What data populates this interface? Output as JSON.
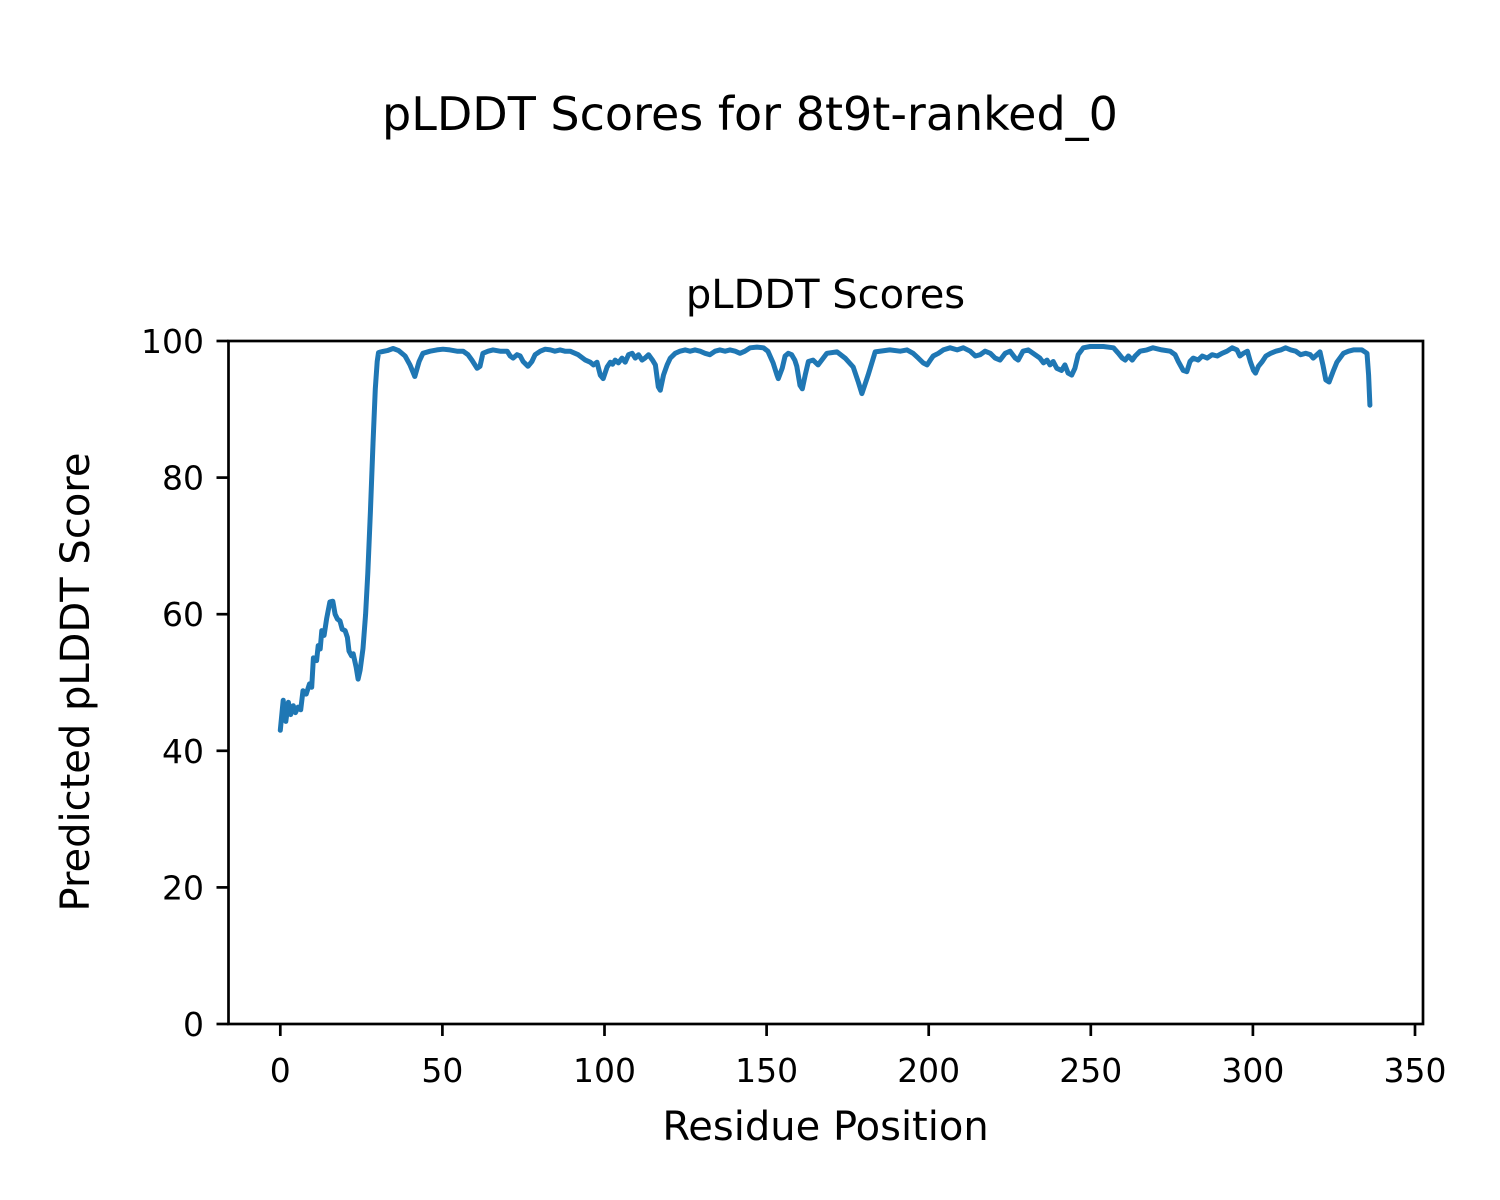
{
  "figure": {
    "suptitle": "pLDDT Scores for 8t9t-ranked_0",
    "background_color": "#ffffff",
    "text_color": "#000000"
  },
  "chart_data": {
    "type": "line",
    "title": "pLDDT Scores",
    "xlabel": "Residue Position",
    "ylabel": "Predicted pLDDT Score",
    "x_ticks": [
      0,
      50,
      100,
      150,
      200,
      250,
      300,
      350
    ],
    "y_ticks": [
      0,
      20,
      40,
      60,
      80,
      100
    ],
    "ylim": [
      0,
      100
    ],
    "xlim": [
      0,
      350
    ],
    "grid": false,
    "legend": "none",
    "line_color": "#1f77b4",
    "axis_color": "#000000",
    "series": [
      {
        "name": "pLDDT",
        "points": [
          [
            0,
            43.0
          ],
          [
            0.9,
            47.4
          ],
          [
            1.7,
            44.3
          ],
          [
            2.5,
            47.1
          ],
          [
            3.2,
            45.3
          ],
          [
            4,
            46.6
          ],
          [
            4.7,
            45.6
          ],
          [
            5.5,
            46.4
          ],
          [
            6.3,
            46.0
          ],
          [
            7,
            48.8
          ],
          [
            8,
            48.3
          ],
          [
            9,
            49.8
          ],
          [
            9.7,
            49.3
          ],
          [
            10.2,
            53.6
          ],
          [
            11.2,
            53.2
          ],
          [
            11.7,
            55.4
          ],
          [
            12.3,
            54.9
          ],
          [
            12.8,
            57.6
          ],
          [
            13.5,
            56.9
          ],
          [
            14.3,
            59.4
          ],
          [
            15.3,
            61.8
          ],
          [
            16.2,
            61.9
          ],
          [
            16.9,
            60.0
          ],
          [
            17.6,
            59.3
          ],
          [
            18.4,
            59.0
          ],
          [
            19.1,
            57.8
          ],
          [
            20,
            57.6
          ],
          [
            20.7,
            56.6
          ],
          [
            21.2,
            54.6
          ],
          [
            22,
            53.9
          ],
          [
            22.5,
            54.2
          ],
          [
            23.4,
            52.2
          ],
          [
            24,
            50.5
          ],
          [
            24.6,
            51.8
          ],
          [
            25.5,
            55.0
          ],
          [
            26.3,
            60.0
          ],
          [
            27,
            66.0
          ],
          [
            27.8,
            75.0
          ],
          [
            28.6,
            85.0
          ],
          [
            29.3,
            93.0
          ],
          [
            29.9,
            97.0
          ],
          [
            30.3,
            98.3
          ],
          [
            31,
            98.4
          ],
          [
            33,
            98.6
          ],
          [
            34.8,
            98.9
          ],
          [
            36.5,
            98.6
          ],
          [
            38.5,
            97.8
          ],
          [
            40,
            96.5
          ],
          [
            41.5,
            94.8
          ],
          [
            42.8,
            97.0
          ],
          [
            44,
            98.2
          ],
          [
            46.2,
            98.5
          ],
          [
            48.3,
            98.7
          ],
          [
            50.2,
            98.8
          ],
          [
            52.3,
            98.7
          ],
          [
            54.5,
            98.5
          ],
          [
            56.4,
            98.5
          ],
          [
            57.9,
            98.0
          ],
          [
            59.1,
            97.2
          ],
          [
            60.7,
            96.0
          ],
          [
            61.6,
            96.3
          ],
          [
            62.5,
            98.2
          ],
          [
            64.1,
            98.5
          ],
          [
            65.6,
            98.7
          ],
          [
            67.8,
            98.5
          ],
          [
            70,
            98.5
          ],
          [
            70.9,
            97.8
          ],
          [
            71.8,
            97.5
          ],
          [
            73,
            98.0
          ],
          [
            74,
            97.8
          ],
          [
            74.9,
            97.0
          ],
          [
            76.4,
            96.3
          ],
          [
            77.6,
            97.0
          ],
          [
            78.6,
            98.0
          ],
          [
            80.2,
            98.5
          ],
          [
            81.7,
            98.8
          ],
          [
            83.3,
            98.7
          ],
          [
            84.7,
            98.5
          ],
          [
            86.3,
            98.7
          ],
          [
            87.8,
            98.5
          ],
          [
            89.4,
            98.5
          ],
          [
            91.9,
            98.0
          ],
          [
            94.1,
            97.2
          ],
          [
            95.6,
            96.9
          ],
          [
            96.6,
            96.5
          ],
          [
            97.7,
            96.9
          ],
          [
            98.7,
            95.0
          ],
          [
            99.6,
            94.5
          ],
          [
            100.8,
            96.2
          ],
          [
            101.8,
            96.9
          ],
          [
            102.5,
            96.6
          ],
          [
            103.3,
            97.2
          ],
          [
            104.3,
            96.8
          ],
          [
            105.4,
            97.5
          ],
          [
            106.4,
            96.9
          ],
          [
            107.4,
            98.0
          ],
          [
            108.5,
            98.2
          ],
          [
            109.5,
            97.5
          ],
          [
            110.5,
            98.0
          ],
          [
            111.6,
            97.2
          ],
          [
            112.5,
            97.5
          ],
          [
            113.6,
            98.0
          ],
          [
            114.8,
            97.2
          ],
          [
            115.7,
            96.5
          ],
          [
            116.6,
            93.3
          ],
          [
            117.2,
            92.8
          ],
          [
            118.2,
            95.0
          ],
          [
            119.3,
            96.5
          ],
          [
            120.3,
            97.5
          ],
          [
            121.8,
            98.2
          ],
          [
            123.3,
            98.5
          ],
          [
            124.9,
            98.7
          ],
          [
            126.4,
            98.5
          ],
          [
            127.9,
            98.7
          ],
          [
            129.5,
            98.5
          ],
          [
            131,
            98.2
          ],
          [
            132.5,
            98.0
          ],
          [
            134.1,
            98.5
          ],
          [
            135.6,
            98.7
          ],
          [
            137.2,
            98.5
          ],
          [
            138.7,
            98.7
          ],
          [
            140.3,
            98.5
          ],
          [
            141.8,
            98.2
          ],
          [
            143.3,
            98.5
          ],
          [
            144.9,
            99.0
          ],
          [
            147,
            99.1
          ],
          [
            149,
            99.0
          ],
          [
            150.4,
            98.5
          ],
          [
            152,
            96.8
          ],
          [
            153.2,
            95.0
          ],
          [
            153.6,
            94.5
          ],
          [
            154.8,
            96.0
          ],
          [
            155.7,
            97.8
          ],
          [
            156.7,
            98.2
          ],
          [
            157.7,
            98.0
          ],
          [
            158.7,
            97.2
          ],
          [
            159.3,
            96.3
          ],
          [
            160.3,
            93.5
          ],
          [
            161,
            93.0
          ],
          [
            161.9,
            95.0
          ],
          [
            162.9,
            97.0
          ],
          [
            164.3,
            97.2
          ],
          [
            165.9,
            96.5
          ],
          [
            168.6,
            98.2
          ],
          [
            171.7,
            98.4
          ],
          [
            174.2,
            97.5
          ],
          [
            176.7,
            96.2
          ],
          [
            178.3,
            94.0
          ],
          [
            179.4,
            92.3
          ],
          [
            181.3,
            95.0
          ],
          [
            183.5,
            98.4
          ],
          [
            188,
            98.7
          ],
          [
            191.2,
            98.5
          ],
          [
            193.3,
            98.7
          ],
          [
            195.2,
            98.2
          ],
          [
            196.8,
            97.5
          ],
          [
            198.3,
            96.8
          ],
          [
            199.5,
            96.5
          ],
          [
            200.5,
            97.2
          ],
          [
            201.4,
            97.8
          ],
          [
            203,
            98.2
          ],
          [
            204.5,
            98.7
          ],
          [
            206.6,
            99.0
          ],
          [
            208.8,
            98.7
          ],
          [
            210.7,
            99.0
          ],
          [
            212.8,
            98.5
          ],
          [
            214.4,
            97.8
          ],
          [
            215.9,
            98.0
          ],
          [
            217.4,
            98.5
          ],
          [
            219,
            98.2
          ],
          [
            220.5,
            97.5
          ],
          [
            222,
            97.2
          ],
          [
            223.6,
            98.2
          ],
          [
            225.1,
            98.5
          ],
          [
            226.7,
            97.5
          ],
          [
            227.6,
            97.2
          ],
          [
            229.1,
            98.5
          ],
          [
            230.7,
            98.7
          ],
          [
            232.2,
            98.2
          ],
          [
            234.3,
            97.5
          ],
          [
            235.4,
            96.8
          ],
          [
            236.5,
            97.2
          ],
          [
            237.4,
            96.5
          ],
          [
            238.4,
            97.0
          ],
          [
            239.5,
            96.0
          ],
          [
            241,
            95.7
          ],
          [
            242,
            96.5
          ],
          [
            243,
            95.3
          ],
          [
            244.1,
            95.0
          ],
          [
            245.1,
            96.0
          ],
          [
            246.1,
            98.0
          ],
          [
            247.7,
            99.0
          ],
          [
            249.8,
            99.2
          ],
          [
            253.9,
            99.2
          ],
          [
            257,
            99.0
          ],
          [
            258.5,
            98.2
          ],
          [
            259.7,
            97.5
          ],
          [
            260.6,
            97.2
          ],
          [
            261.6,
            97.8
          ],
          [
            262.8,
            97.2
          ],
          [
            263.7,
            97.8
          ],
          [
            265.2,
            98.5
          ],
          [
            267.3,
            98.7
          ],
          [
            269.2,
            99.0
          ],
          [
            271.9,
            98.7
          ],
          [
            274.5,
            98.5
          ],
          [
            276,
            98.0
          ],
          [
            277,
            97.0
          ],
          [
            278.5,
            95.7
          ],
          [
            279.6,
            95.5
          ],
          [
            280.6,
            97.0
          ],
          [
            281.6,
            97.5
          ],
          [
            283.1,
            97.2
          ],
          [
            284.4,
            97.8
          ],
          [
            285.9,
            97.5
          ],
          [
            287.4,
            98.0
          ],
          [
            289,
            97.8
          ],
          [
            290.5,
            98.2
          ],
          [
            292,
            98.5
          ],
          [
            293.6,
            99.0
          ],
          [
            295.1,
            98.7
          ],
          [
            296,
            97.8
          ],
          [
            297.1,
            98.2
          ],
          [
            298.3,
            98.5
          ],
          [
            299.2,
            97.0
          ],
          [
            300.2,
            95.7
          ],
          [
            300.8,
            95.3
          ],
          [
            301.7,
            96.3
          ],
          [
            302.9,
            97.0
          ],
          [
            304,
            97.8
          ],
          [
            305.5,
            98.2
          ],
          [
            307.1,
            98.5
          ],
          [
            308.6,
            98.7
          ],
          [
            310.1,
            99.0
          ],
          [
            311.7,
            98.7
          ],
          [
            313.2,
            98.5
          ],
          [
            314.7,
            98.0
          ],
          [
            316.3,
            98.2
          ],
          [
            317.7,
            98.0
          ],
          [
            318.6,
            97.5
          ],
          [
            320.7,
            98.4
          ],
          [
            321.6,
            96.5
          ],
          [
            322.5,
            94.3
          ],
          [
            323.5,
            94.0
          ],
          [
            324.7,
            95.5
          ],
          [
            325.9,
            96.9
          ],
          [
            327.9,
            98.2
          ],
          [
            329.5,
            98.5
          ],
          [
            331,
            98.7
          ],
          [
            333.6,
            98.7
          ],
          [
            335.2,
            98.2
          ],
          [
            335.7,
            95.0
          ],
          [
            336.1,
            90.6
          ]
        ]
      }
    ]
  }
}
